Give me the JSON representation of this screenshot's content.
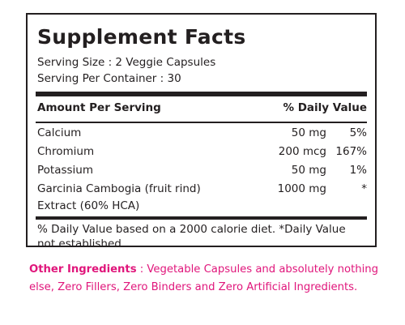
{
  "facts": {
    "title": "Supplement Facts",
    "serving_size": "Serving Size : 2 Veggie Capsules",
    "servings_per_container": "Serving Per Container : 30",
    "header_amount": "Amount Per Serving",
    "header_dv": "% Daily Value",
    "nutrients": [
      {
        "name": "Calcium",
        "amount": "50 mg",
        "dv": "5%"
      },
      {
        "name": "Chromium",
        "amount": "200 mcg",
        "dv": "167%"
      },
      {
        "name": "Potassium",
        "amount": "50 mg",
        "dv": "1%"
      },
      {
        "name": "Garcinia Cambogia (fruit rind)",
        "name_line2": "Extract (60% HCA)",
        "amount": "1000 mg",
        "dv": "*"
      }
    ],
    "footnote_line1": "% Daily Value based on a 2000 calorie diet. *Daily Value",
    "footnote_line2": "not established."
  },
  "other_ingredients": {
    "label": "Other Ingredients",
    "text_line1": " : Vegetable Capsules and absolutely nothing",
    "text_line2": "else, Zero Fillers, Zero Binders and Zero Artificial Ingredients."
  },
  "colors": {
    "text": "#231f20",
    "accent": "#e0167b"
  }
}
